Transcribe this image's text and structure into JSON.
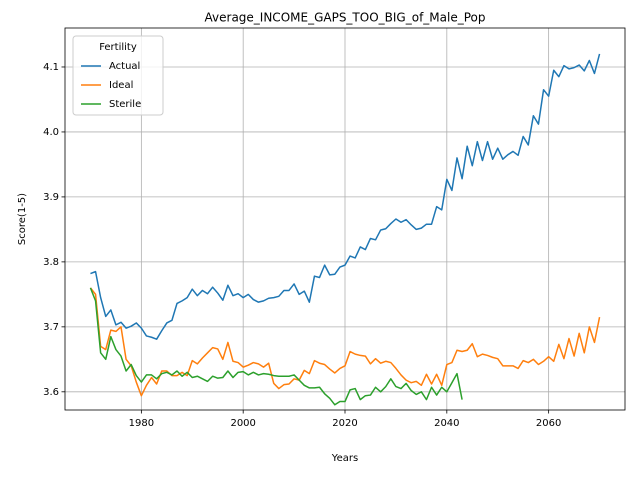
{
  "chart_data": {
    "type": "line",
    "title": "Average_INCOME_GAPS_TOO_BIG_of_Male_Pop",
    "xlabel": "Years",
    "ylabel": "Score(1-5)",
    "legend_title": "Fertility",
    "legend": "upper left",
    "grid": true,
    "xlim": [
      1965,
      2075
    ],
    "xticks": [
      1980,
      2000,
      2020,
      2040,
      2060
    ],
    "ylim": [
      3.572,
      4.16
    ],
    "yticks": [
      3.6,
      3.7,
      3.8,
      3.9,
      {
        "value": 4,
        "label": "4.0"
      },
      4.1
    ],
    "x": [
      1970,
      1971,
      1972,
      1973,
      1974,
      1975,
      1976,
      1977,
      1978,
      1979,
      1980,
      1981,
      1982,
      1983,
      1984,
      1985,
      1986,
      1987,
      1988,
      1989,
      1990,
      1991,
      1992,
      1993,
      1994,
      1995,
      1996,
      1997,
      1998,
      1999,
      2000,
      2001,
      2002,
      2003,
      2004,
      2005,
      2006,
      2007,
      2008,
      2009,
      2010,
      2011,
      2012,
      2013,
      2014,
      2015,
      2016,
      2017,
      2018,
      2019,
      2020,
      2021,
      2022,
      2023,
      2024,
      2025,
      2026,
      2027,
      2028,
      2029,
      2030,
      2031,
      2032,
      2033,
      2034,
      2035,
      2036,
      2037,
      2038,
      2039,
      2040,
      2041,
      2042,
      2043,
      2044,
      2045,
      2046,
      2047,
      2048,
      2049,
      2050,
      2051,
      2052,
      2053,
      2054,
      2055,
      2056,
      2057,
      2058,
      2059,
      2060,
      2061,
      2062,
      2063,
      2064,
      2065,
      2066,
      2067,
      2068,
      2069,
      2070
    ],
    "series": [
      {
        "name": "Actual",
        "color": "#1f77b4",
        "values": [
          3.782,
          3.785,
          3.745,
          3.716,
          3.726,
          3.703,
          3.707,
          3.698,
          3.701,
          3.706,
          3.698,
          3.686,
          3.684,
          3.681,
          3.694,
          3.706,
          3.71,
          3.736,
          3.74,
          3.745,
          3.758,
          3.748,
          3.756,
          3.751,
          3.761,
          3.752,
          3.741,
          3.764,
          3.748,
          3.751,
          3.745,
          3.75,
          3.742,
          3.738,
          3.74,
          3.744,
          3.745,
          3.747,
          3.756,
          3.756,
          3.766,
          3.75,
          3.755,
          3.738,
          3.778,
          3.776,
          3.795,
          3.78,
          3.781,
          3.792,
          3.795,
          3.809,
          3.806,
          3.823,
          3.819,
          3.836,
          3.834,
          3.849,
          3.851,
          3.859,
          3.866,
          3.861,
          3.865,
          3.857,
          3.85,
          3.852,
          3.858,
          3.858,
          3.885,
          3.88,
          3.927,
          3.91,
          3.96,
          3.928,
          3.978,
          3.948,
          3.985,
          3.956,
          3.985,
          3.958,
          3.975,
          3.958,
          3.965,
          3.97,
          3.964,
          3.993,
          3.98,
          4.025,
          4.012,
          4.065,
          4.055,
          4.095,
          4.085,
          4.102,
          4.097,
          4.099,
          4.103,
          4.094,
          4.11,
          4.09,
          4.12
        ]
      },
      {
        "name": "Ideal",
        "color": "#ff7f0e",
        "values": [
          3.76,
          3.75,
          3.67,
          3.665,
          3.695,
          3.693,
          3.7,
          3.65,
          3.64,
          3.615,
          3.594,
          3.61,
          3.622,
          3.612,
          3.632,
          3.632,
          3.625,
          3.625,
          3.63,
          3.625,
          3.648,
          3.643,
          3.652,
          3.66,
          3.668,
          3.666,
          3.65,
          3.676,
          3.647,
          3.645,
          3.638,
          3.641,
          3.645,
          3.643,
          3.638,
          3.644,
          3.613,
          3.605,
          3.611,
          3.612,
          3.62,
          3.618,
          3.633,
          3.628,
          3.648,
          3.644,
          3.642,
          3.635,
          3.629,
          3.636,
          3.64,
          3.662,
          3.658,
          3.656,
          3.655,
          3.643,
          3.651,
          3.644,
          3.647,
          3.645,
          3.636,
          3.626,
          3.618,
          3.614,
          3.616,
          3.61,
          3.627,
          3.612,
          3.627,
          3.61,
          3.642,
          3.645,
          3.664,
          3.662,
          3.664,
          3.674,
          3.654,
          3.658,
          3.656,
          3.653,
          3.651,
          3.64,
          3.64,
          3.64,
          3.636,
          3.648,
          3.645,
          3.65,
          3.642,
          3.647,
          3.654,
          3.647,
          3.673,
          3.651,
          3.682,
          3.655,
          3.69,
          3.66,
          3.7,
          3.676,
          3.715
        ]
      },
      {
        "name": "Sterile",
        "color": "#2ca02c",
        "values": [
          3.76,
          3.74,
          3.66,
          3.65,
          3.685,
          3.665,
          3.655,
          3.632,
          3.642,
          3.625,
          3.615,
          3.626,
          3.626,
          3.62,
          3.628,
          3.63,
          3.626,
          3.632,
          3.624,
          3.63,
          3.622,
          3.624,
          3.62,
          3.616,
          3.624,
          3.621,
          3.622,
          3.632,
          3.622,
          3.63,
          3.631,
          3.626,
          3.63,
          3.626,
          3.628,
          3.627,
          3.625,
          3.624,
          3.624,
          3.624,
          3.626,
          3.618,
          3.61,
          3.606,
          3.606,
          3.607,
          3.597,
          3.59,
          3.58,
          3.585,
          3.585,
          3.603,
          3.605,
          3.588,
          3.594,
          3.595,
          3.607,
          3.6,
          3.608,
          3.62,
          3.608,
          3.605,
          3.613,
          3.602,
          3.596,
          3.6,
          3.588,
          3.607,
          3.595,
          3.607,
          3.6,
          3.614,
          3.628,
          3.588,
          null,
          null,
          null,
          null,
          null,
          null,
          null,
          null,
          null,
          null,
          null,
          null,
          null,
          null,
          null,
          null,
          null,
          null,
          null,
          null,
          null,
          null,
          null,
          null,
          null,
          null,
          null
        ]
      }
    ]
  }
}
